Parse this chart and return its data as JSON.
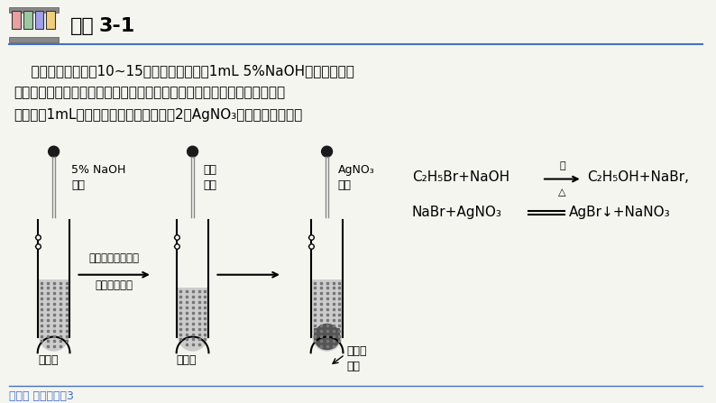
{
  "bg_color": "#f5f5f0",
  "title": "实验3-1",
  "title_bold_part": "3-1",
  "header_line_color": "#4472c4",
  "text_line1": "    取一支试管，滴入10~15滴溴乙烷，再加入1mL 5%NaOH溶液，振荡后",
  "text_line2": "加热，静置。待溶液分层后，用胶头滴管小心吸取少量上层水溶液，移入另",
  "text_line3": "一支盛有1mL稀硝酸的试管中，然后加入2滴AgNO₃溶液，观察现象。",
  "label_naoh": "5% NaOH\n溶液",
  "label_upper": "上层\n清液",
  "label_agno3": "AgNO₃\n溶液",
  "label_vibrate": "振荡后加热，静置",
  "label_take": "取上层水溶液",
  "label_bromoethane": "溴乙烷",
  "label_hno3": "稀硝酸",
  "label_precipitate": "淡黄色\n沉淀",
  "eq1_left": "C₂H₅Br+NaOH",
  "eq1_right": "C₂H₅OH+NaBr,",
  "eq1_above": "水",
  "eq1_below": "△",
  "eq2": "NaBr+AgNO₃",
  "eq2_right": "AgBr↓+NaNO₃",
  "footer": "人教版 选择性必修3",
  "footer_color": "#4472c4",
  "arrow_color": "#000000",
  "tube_color": "#ffffff",
  "tube_border": "#000000",
  "liquid_dots_color": "#aaaaaa",
  "stopper_color": "#1a1a1a",
  "icon_colors": [
    "#e8a0a0",
    "#a0c8a0",
    "#a0a0e8",
    "#f0d080"
  ]
}
